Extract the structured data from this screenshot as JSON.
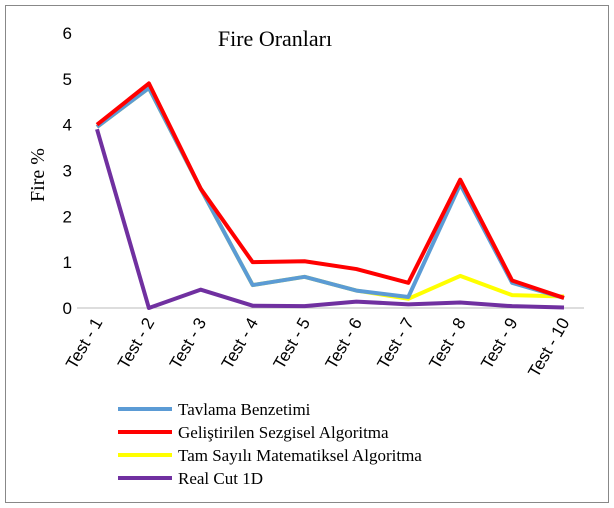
{
  "chart_data": {
    "type": "line",
    "title": "Fire Oranları",
    "y_label": "Fire  %",
    "categories": [
      "Test - 1",
      "Test - 2",
      "Test - 3",
      "Test - 4",
      "Test - 5",
      "Test - 6",
      "Test - 7",
      "Test - 8",
      "Test - 9",
      "Test - 10"
    ],
    "series": [
      {
        "name": "Tavlama Benzetimi",
        "color": "#5b9bd5",
        "values": [
          3.95,
          4.8,
          2.6,
          0.5,
          0.68,
          0.38,
          0.24,
          2.7,
          0.55,
          0.22
        ]
      },
      {
        "name": "Geliştirilen Sezgisel Algoritma",
        "color": "#ff0000",
        "values": [
          4.0,
          4.9,
          2.6,
          1.0,
          1.02,
          0.85,
          0.55,
          2.8,
          0.6,
          0.22
        ]
      },
      {
        "name": "Tam Sayılı Matematiksel Algoritma",
        "color": "#ffff00",
        "values": [
          3.95,
          4.8,
          2.6,
          0.5,
          0.68,
          0.38,
          0.2,
          0.7,
          0.28,
          0.25
        ]
      },
      {
        "name": "Real Cut 1D",
        "color": "#7030a0",
        "values": [
          3.9,
          0.0,
          0.4,
          0.05,
          0.04,
          0.14,
          0.08,
          0.12,
          0.04,
          0.01
        ]
      }
    ],
    "ylim": [
      0,
      6
    ],
    "yticks": [
      0,
      1,
      2,
      3,
      4,
      5,
      6
    ],
    "grid": false
  }
}
